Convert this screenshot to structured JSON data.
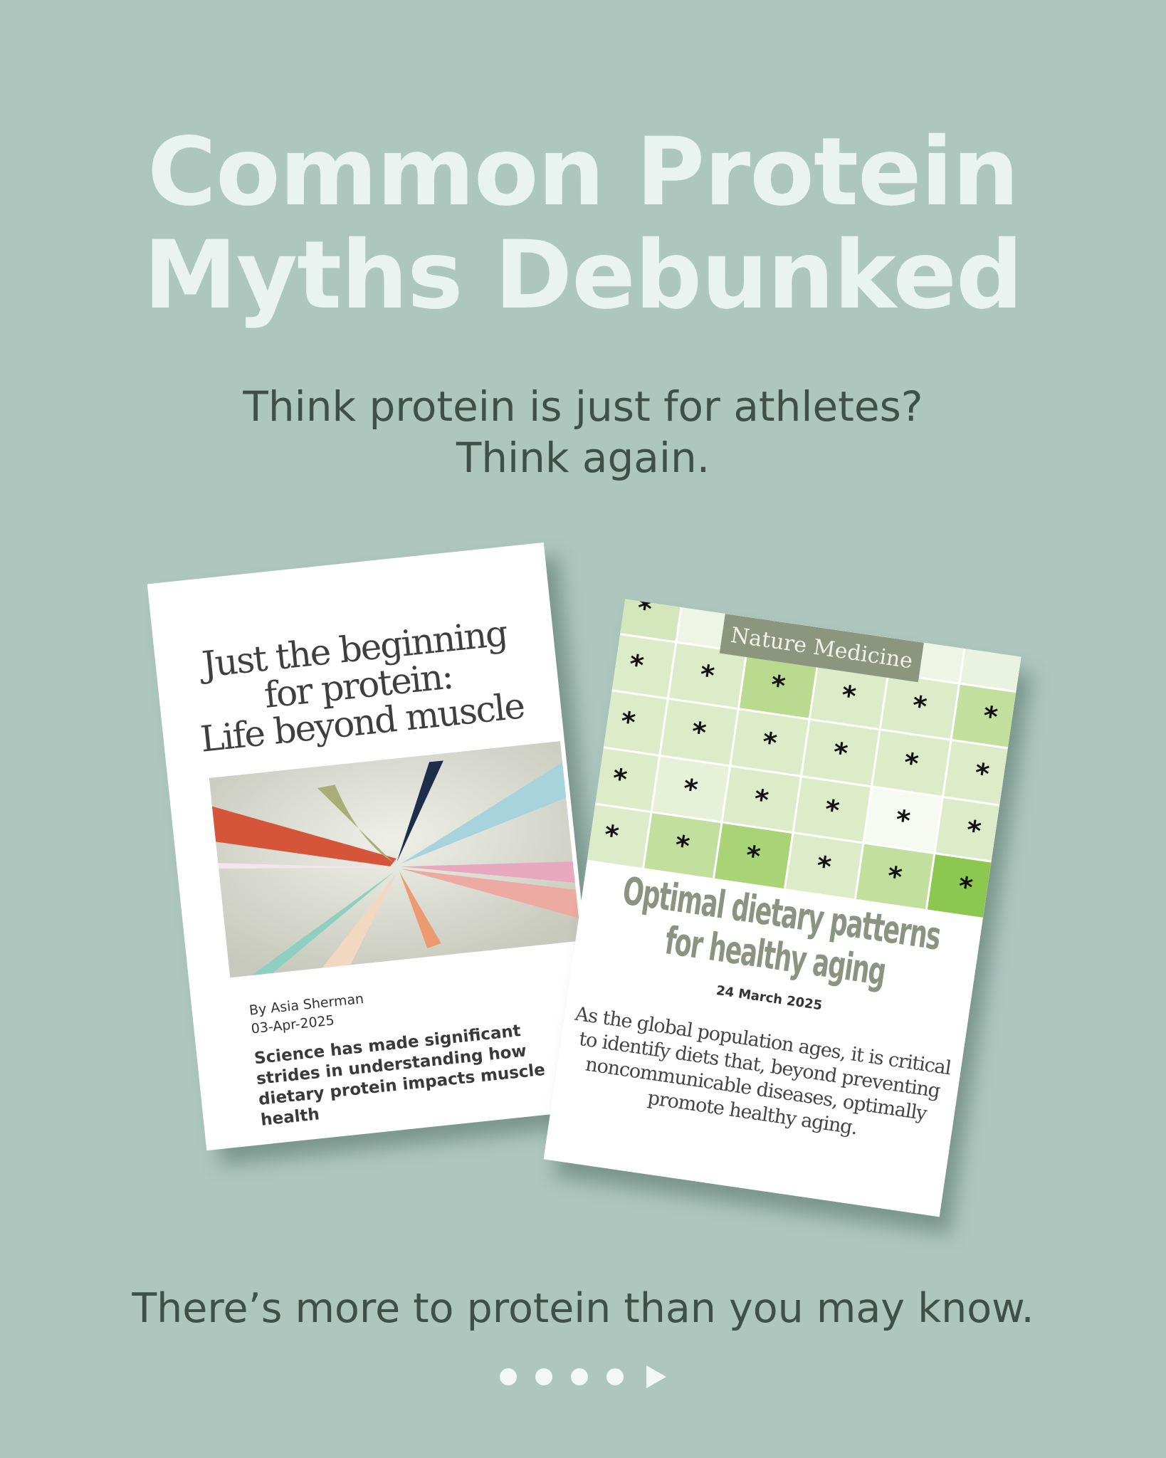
{
  "header": {
    "title_line1": "Common Protein",
    "title_line2": "Myths Debunked",
    "subtitle_line1": "Think protein is just for athletes?",
    "subtitle_line2": "Think again."
  },
  "article_left": {
    "title_line1": "Just the beginning",
    "title_line2": "for protein:",
    "title_line3": "Life beyond muscle",
    "author": "By Asia Sherman",
    "date": "03-Apr-2025",
    "summary": "Science has made significant strides in understanding how dietary protein impacts muscle health"
  },
  "article_right": {
    "journal": "Nature Medicine",
    "grid_symbol": "*",
    "title_line1": "Optimal dietary patterns",
    "title_line2": "for healthy aging",
    "date": "24 March 2025",
    "summary": "As the global population ages, it is critical to identify diets that, beyond preventing noncommunicable diseases, optimally promote healthy aging."
  },
  "footer": {
    "text": "There’s more to protein than you may know."
  },
  "pagination": {
    "pages": 5,
    "current": 1,
    "next_icon": "play-arrow-icon"
  },
  "colors": {
    "background": "#adc7bf",
    "title": "#e9f4f0",
    "text": "#3e5148",
    "accent_green": "#8b9480"
  }
}
